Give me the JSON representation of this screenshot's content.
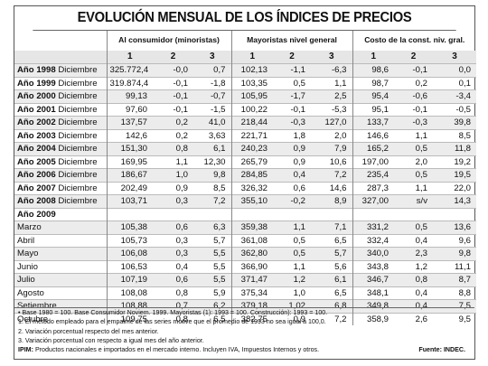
{
  "title": "EVOLUCIÓN MENSUAL DE LOS ÍNDICES DE PRECIOS",
  "groups": [
    "Al consumidor (minoristas)",
    "Mayoristas nivel general",
    "Costo de la const. niv. gral."
  ],
  "col_numbers": [
    "1",
    "2",
    "3",
    "1",
    "2",
    "3",
    "1",
    "2",
    "3"
  ],
  "annual_rows": [
    {
      "year": "Año 1998",
      "month": "Diciembre",
      "v": [
        "325.772,4",
        "-0,0",
        "0,7",
        "102,13",
        "-1,1",
        "-6,3",
        "98,6",
        "-0,1",
        "0,0"
      ]
    },
    {
      "year": "Año 1999",
      "month": "Diciembre",
      "v": [
        "319.874,4",
        "-0,1",
        "-1,8",
        "103,35",
        "0,5",
        "1,1",
        "98,7",
        "0,2",
        "0,1"
      ]
    },
    {
      "year": "Año 2000",
      "month": "Diciembre",
      "v": [
        "99,13",
        "-0,1",
        "-0,7",
        "105,95",
        "-1,7",
        "2,5",
        "95,4",
        "-0,6",
        "-3,4"
      ]
    },
    {
      "year": "Año 2001",
      "month": "Diciembre",
      "v": [
        "97,60",
        "-0,1",
        "-1,5",
        "100,22",
        "-0,1",
        "-5,3",
        "95,1",
        "-0,1",
        "-0,5"
      ]
    },
    {
      "year": "Año 2002",
      "month": "Diciembre",
      "v": [
        "137,57",
        "0,2",
        "41,0",
        "218,44",
        "-0,3",
        "127,0",
        "133,7",
        "-0,3",
        "39,8"
      ]
    },
    {
      "year": "Año 2003",
      "month": "Diciembre",
      "v": [
        "142,6",
        "0,2",
        "3,63",
        "221,71",
        "1,8",
        "2,0",
        "146,6",
        "1,1",
        "8,5"
      ]
    },
    {
      "year": "Año 2004",
      "month": "Diciembre",
      "v": [
        "151,30",
        "0,8",
        "6,1",
        "240,23",
        "0,9",
        "7,9",
        "165,2",
        "0,5",
        "11,8"
      ]
    },
    {
      "year": "Año 2005",
      "month": "Diciembre",
      "v": [
        "169,95",
        "1,1",
        "12,30",
        "265,79",
        "0,9",
        "10,6",
        "197,00",
        "2,0",
        "19,2"
      ]
    },
    {
      "year": "Año 2006",
      "month": "Diciembre",
      "v": [
        "186,67",
        "1,0",
        "9,8",
        "284,85",
        "0,4",
        "7,2",
        "235,4",
        "0,5",
        "19,5"
      ]
    },
    {
      "year": "Año 2007",
      "month": "Diciembre",
      "v": [
        "202,49",
        "0,9",
        "8,5",
        "326,32",
        "0,6",
        "14,6",
        "287,3",
        "1,1",
        "22,0"
      ]
    },
    {
      "year": "Año 2008",
      "month": "Diciembre",
      "v": [
        "103,71",
        "0,3",
        "7,2",
        "355,10",
        "-0,2",
        "8,9",
        "327,00",
        "s/v",
        "14,3"
      ]
    }
  ],
  "year_2009_label": "Año 2009",
  "monthly_rows": [
    {
      "month": "Marzo",
      "v": [
        "105,38",
        "0,6",
        "6,3",
        "359,38",
        "1,1",
        "7,1",
        "331,2",
        "0,5",
        "13,6"
      ]
    },
    {
      "month": "Abril",
      "v": [
        "105,73",
        "0,3",
        "5,7",
        "361,08",
        "0,5",
        "6,5",
        "332,4",
        "0,4",
        "9,6"
      ]
    },
    {
      "month": "Mayo",
      "v": [
        "106,08",
        "0,3",
        "5,5",
        "362,80",
        "0,5",
        "5,7",
        "340,0",
        "2,3",
        "9,8"
      ]
    },
    {
      "month": "Junio",
      "v": [
        "106,53",
        "0,4",
        "5,5",
        "366,90",
        "1,1",
        "5,6",
        "343,8",
        "1,2",
        "11,1"
      ]
    },
    {
      "month": "Julio",
      "v": [
        "107,19",
        "0,6",
        "5,5",
        "371,47",
        "1,2",
        "6,1",
        "346,7",
        "0,8",
        "8,7"
      ]
    },
    {
      "month": "Agosto",
      "v": [
        "108,08",
        "0,8",
        "5,9",
        "375,34",
        "1,0",
        "6,5",
        "348,1",
        "0,4",
        "8,8"
      ]
    },
    {
      "month": "Setiembre",
      "v": [
        "108,88",
        "0,7",
        "6,2",
        "379,18",
        "1,02",
        "6,8",
        "349,8",
        "0,4",
        "7,5"
      ]
    },
    {
      "month": "Octubre",
      "v": [
        "109,75",
        "0,8",
        "6,5",
        "382,75",
        "0,9",
        "7,2",
        "358,9",
        "2,6",
        "9,5"
      ]
    }
  ],
  "notes": [
    "• Base 1980 = 100. Base Consumidor Noviem. 1999. Mayoristas (1): 1993 = 100. Construcción): 1993 = 100.",
    "1. El método empleado para el empalme de las series motive que el promedio de 1993 no sea igual a 100,0.",
    "2. Variación porcentual respecto del mes anterior.",
    "3. Variación porcentual con respecto a igual mes del año anterior."
  ],
  "ipim_label": "IPIM:",
  "ipim_text": "Productos nacionales e importados en el mercado interno. Incluyen IVA, Impuestos Internos y otros.",
  "source": "Fuente: INDEC."
}
